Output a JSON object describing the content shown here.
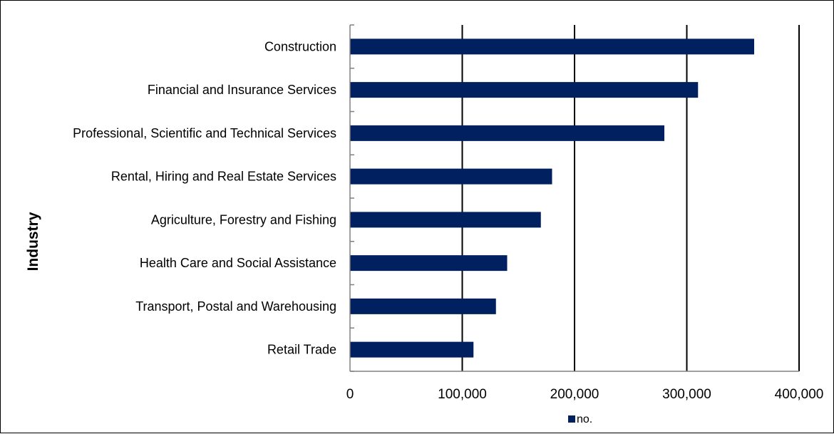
{
  "chart_data": {
    "type": "bar",
    "orientation": "horizontal",
    "categories": [
      "Construction",
      "Financial and Insurance Services",
      "Professional, Scientific and Technical Services",
      "Rental, Hiring and Real Estate Services",
      "Agriculture, Forestry and Fishing",
      "Health Care and Social Assistance",
      "Transport, Postal and Warehousing",
      "Retail Trade"
    ],
    "series": [
      {
        "name": "no.",
        "color": "#002060",
        "values": [
          360000,
          310000,
          280000,
          180000,
          170000,
          140000,
          130000,
          110000
        ]
      }
    ],
    "xlim": [
      0,
      400000
    ],
    "xticks": [
      0,
      100000,
      200000,
      300000,
      400000
    ],
    "xtick_labels": [
      "0",
      "100,000",
      "200,000",
      "300,000",
      "400,000"
    ],
    "xlabel": "",
    "ylabel": "Industry",
    "title": "",
    "grid": "vertical major gridlines",
    "legend_position": "bottom"
  }
}
